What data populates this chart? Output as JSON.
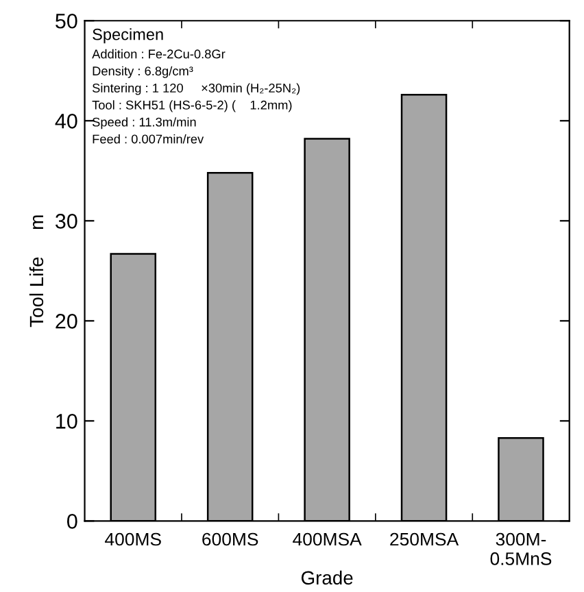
{
  "chart_data": {
    "type": "bar",
    "categories": [
      "400MS",
      "600MS",
      "400MSA",
      "250MSA",
      "300M-\n0.5MnS"
    ],
    "values": [
      26.7,
      34.8,
      38.2,
      42.6,
      8.3
    ],
    "color": "#a6a6a6",
    "xlabel": "Grade",
    "ylabel": "Tool Life     m",
    "ylim": [
      0,
      50
    ],
    "yticks": [
      0,
      10,
      20,
      30,
      40,
      50
    ],
    "grid": false,
    "legend": false,
    "annotations": [
      "Specimen",
      "Addition : Fe-2Cu-0.8Gr",
      "Density : 6.8g/cm³",
      "Sintering : 1 120     ×30min (H₂-25N₂)",
      "Tool : SKH51 (HS-6-5-2) (    1.2mm)",
      "Speed : 11.3m/min",
      "Feed : 0.007min/rev"
    ]
  }
}
